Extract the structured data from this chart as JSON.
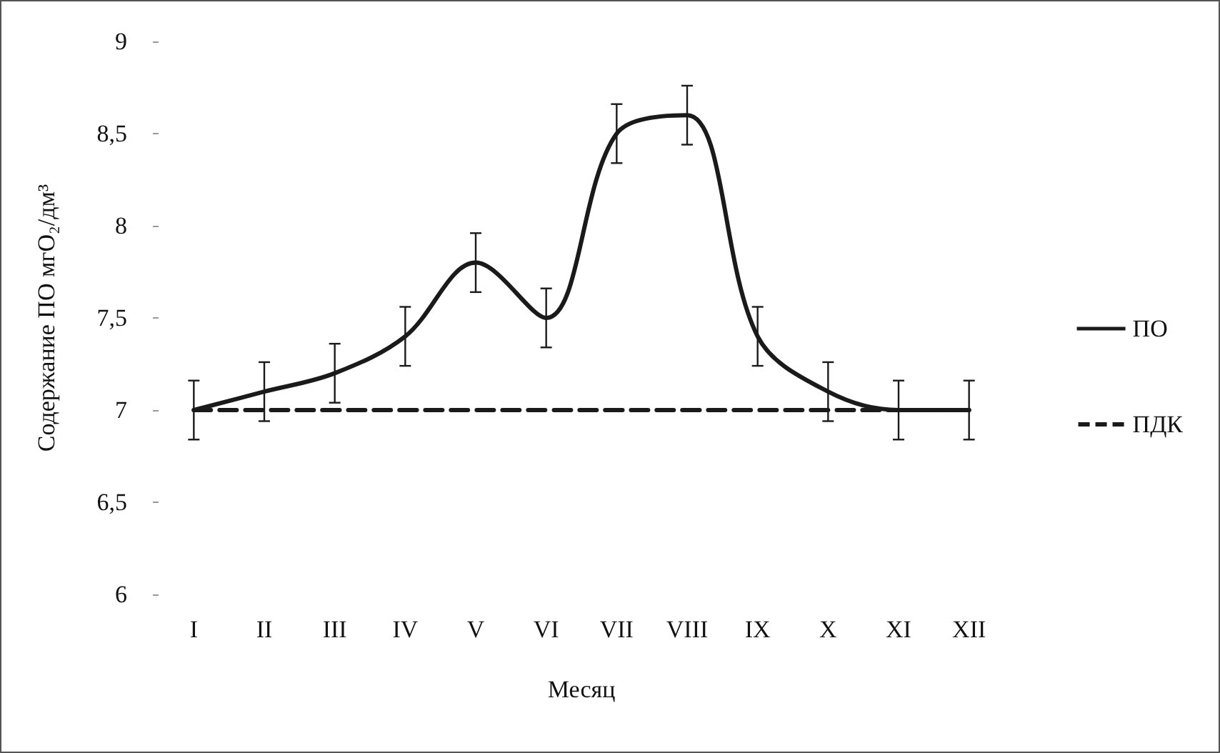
{
  "chart_data": {
    "type": "line",
    "xlabel": "Месяц",
    "ylabel": "Содержание ПО мгО₂/дм³",
    "categories": [
      "I",
      "II",
      "III",
      "IV",
      "V",
      "VI",
      "VII",
      "VIII",
      "IX",
      "X",
      "XI",
      "XII"
    ],
    "series": [
      {
        "name": "ПО",
        "color": "#1a1a1a",
        "line_style": "solid",
        "values": [
          7.0,
          7.1,
          7.2,
          7.4,
          7.8,
          7.5,
          8.5,
          8.6,
          7.4,
          7.1,
          7.0,
          7.0
        ],
        "errors": [
          0.16,
          0.16,
          0.16,
          0.16,
          0.16,
          0.16,
          0.16,
          0.16,
          0.16,
          0.16,
          0.16,
          0.16
        ]
      },
      {
        "name": "ПДК",
        "color": "#1a1a1a",
        "line_style": "dashed",
        "values": [
          7,
          7,
          7,
          7,
          7,
          7,
          7,
          7,
          7,
          7,
          7,
          7
        ]
      }
    ],
    "ylim": [
      6,
      9
    ],
    "yticks": [
      {
        "value": 6,
        "label": "6"
      },
      {
        "value": 6.5,
        "label": "6,5"
      },
      {
        "value": 7,
        "label": "7"
      },
      {
        "value": 7.5,
        "label": "7,5"
      },
      {
        "value": 8,
        "label": "8"
      },
      {
        "value": 8.5,
        "label": "8,5"
      },
      {
        "value": 9,
        "label": "9"
      }
    ],
    "grid": false,
    "legend": "right",
    "marker": "none"
  }
}
